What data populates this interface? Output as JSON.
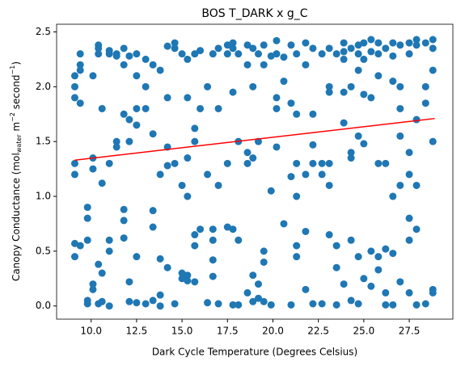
{
  "chart_data": {
    "type": "scatter",
    "title": "BOS T_DARK x g_C",
    "xlabel": "Dark Cycle Temperature (Degrees Celsius)",
    "ylabel": [
      "Canopy Conductance (mol",
      "water",
      " m",
      "−2",
      " second",
      "−1",
      ")"
    ],
    "color": "#1f77b4",
    "xlim": [
      8.1,
      29.9
    ],
    "ylim": [
      -0.12,
      2.57
    ],
    "xticks": [
      {
        "value": 10,
        "label": "10.0"
      },
      12.5,
      {
        "value": 15,
        "label": "15.0"
      },
      17.5,
      {
        "value": 20,
        "label": "20.0"
      },
      22.5,
      {
        "value": 25,
        "label": "25.0"
      },
      27.5
    ],
    "yticks": [
      {
        "value": 0,
        "label": "0.0"
      },
      0.5,
      {
        "value": 1,
        "label": "1.0"
      },
      1.5,
      {
        "value": 2,
        "label": "2.0"
      },
      2.5
    ],
    "fit_line": {
      "color": "#ff0000",
      "x": [
        9.1,
        28.9
      ],
      "values": [
        1.33,
        1.71
      ]
    },
    "x": [
      9.1,
      9.1,
      9.1,
      9.1,
      9.1,
      9.1,
      9.1,
      9.4,
      9.4,
      9.4,
      9.4,
      9.4,
      9.8,
      9.8,
      9.8,
      9.8,
      9.8,
      10.1,
      10.1,
      10.1,
      10.1,
      10.1,
      10.4,
      10.4,
      10.4,
      10.4,
      10.4,
      10.6,
      10.6,
      10.6,
      10.6,
      11.0,
      11.0,
      11.0,
      11.0,
      11.0,
      11.0,
      11.4,
      11.4,
      11.4,
      11.4,
      11.8,
      11.8,
      11.8,
      11.8,
      11.8,
      11.8,
      12.1,
      12.1,
      12.1,
      12.1,
      12.1,
      12.5,
      12.5,
      12.5,
      12.5,
      12.5,
      12.5,
      13.0,
      13.0,
      13.0,
      13.0,
      13.4,
      13.4,
      13.4,
      13.4,
      13.4,
      13.8,
      13.8,
      13.8,
      13.8,
      13.8,
      14.2,
      14.2,
      14.2,
      14.2,
      14.2,
      14.6,
      14.6,
      14.6,
      14.6,
      15.0,
      15.0,
      15.0,
      15.0,
      15.3,
      15.3,
      15.3,
      15.3,
      15.3,
      15.3,
      15.7,
      15.7,
      15.7,
      15.7,
      15.7,
      15.7,
      16.0,
      16.0,
      16.0,
      16.4,
      16.4,
      16.4,
      16.7,
      16.7,
      16.7,
      16.7,
      16.7,
      17.0,
      17.0,
      17.0,
      17.0,
      17.5,
      17.5,
      17.5,
      17.5,
      17.8,
      17.8,
      17.8,
      17.8,
      17.8,
      18.1,
      18.1,
      18.1,
      18.1,
      18.6,
      18.6,
      18.6,
      18.6,
      18.6,
      18.9,
      18.9,
      18.9,
      18.9,
      18.9,
      19.2,
      19.2,
      19.2,
      19.2,
      19.5,
      19.5,
      19.5,
      19.5,
      19.5,
      19.9,
      19.9,
      19.9,
      20.2,
      20.2,
      20.2,
      20.2,
      20.2,
      20.6,
      20.6,
      20.6,
      21.0,
      21.0,
      21.0,
      21.0,
      21.3,
      21.3,
      21.3,
      21.3,
      21.3,
      21.3,
      21.8,
      21.8,
      21.8,
      21.8,
      21.8,
      22.2,
      22.2,
      22.2,
      22.2,
      22.2,
      22.7,
      22.7,
      22.7,
      22.7,
      23.1,
      23.1,
      23.1,
      23.1,
      23.1,
      23.1,
      23.5,
      23.5,
      23.5,
      23.5,
      23.9,
      23.9,
      23.9,
      23.9,
      23.9,
      23.9,
      24.3,
      24.3,
      24.3,
      24.3,
      24.3,
      24.3,
      24.7,
      24.7,
      24.7,
      24.7,
      24.7,
      24.7,
      25.0,
      25.0,
      25.0,
      25.0,
      25.0,
      25.4,
      25.4,
      25.4,
      25.4,
      25.4,
      25.8,
      25.8,
      25.8,
      25.8,
      25.8,
      25.8,
      26.2,
      26.2,
      26.2,
      26.2,
      26.2,
      26.6,
      26.6,
      26.6,
      26.6,
      26.6,
      26.6,
      27.0,
      27.0,
      27.0,
      27.0,
      27.0,
      27.0,
      27.5,
      27.5,
      27.5,
      27.5,
      27.5,
      27.5,
      27.5,
      27.9,
      27.9,
      27.9,
      27.9,
      27.9,
      27.9,
      28.4,
      28.4,
      28.4,
      28.4,
      28.8,
      28.8,
      28.8,
      28.8,
      28.8,
      28.8
    ],
    "values": [
      2.1,
      2.0,
      1.9,
      1.3,
      1.2,
      0.57,
      0.45,
      2.3,
      2.2,
      2.15,
      1.85,
      0.55,
      0.9,
      0.8,
      0.6,
      0.05,
      0.02,
      2.1,
      1.35,
      1.25,
      0.2,
      0.15,
      2.38,
      2.35,
      2.3,
      0.38,
      0.02,
      1.8,
      1.12,
      0.3,
      0.04,
      2.33,
      2.3,
      1.3,
      0.6,
      0.5,
      0.0,
      2.3,
      2.28,
      1.5,
      1.45,
      2.35,
      2.2,
      1.75,
      0.88,
      0.78,
      0.62,
      2.28,
      1.7,
      1.5,
      0.22,
      0.04,
      2.3,
      2.1,
      1.8,
      1.65,
      0.45,
      0.03,
      2.25,
      2.0,
      1.8,
      0.02,
      2.2,
      1.57,
      0.87,
      0.72,
      0.05,
      2.15,
      1.2,
      0.43,
      0.1,
      0.0,
      2.37,
      1.9,
      1.45,
      1.28,
      0.35,
      2.4,
      2.35,
      1.3,
      0.02,
      2.3,
      1.1,
      0.3,
      0.25,
      2.25,
      1.9,
      1.35,
      1.0,
      0.28,
      0.23,
      2.3,
      1.62,
      1.5,
      0.65,
      0.55,
      0.22,
      2.33,
      1.8,
      0.7,
      2.0,
      1.2,
      0.03,
      2.3,
      0.7,
      0.6,
      0.42,
      0.27,
      2.35,
      1.8,
      1.1,
      0.02,
      2.38,
      2.3,
      1.3,
      0.72,
      2.4,
      2.35,
      1.95,
      0.7,
      0.01,
      2.3,
      1.5,
      0.6,
      0.01,
      2.38,
      2.2,
      1.3,
      1.4,
      0.12,
      2.35,
      2.0,
      1.35,
      0.28,
      0.04,
      2.3,
      1.5,
      0.2,
      0.07,
      2.38,
      2.2,
      0.5,
      0.4,
      0.04,
      2.28,
      1.05,
      0.01,
      2.42,
      2.3,
      1.9,
      1.8,
      1.45,
      2.27,
      2.05,
      0.75,
      2.38,
      1.85,
      1.18,
      0.01,
      2.3,
      1.75,
      1.3,
      1.0,
      0.55,
      0.45,
      2.4,
      2.2,
      1.2,
      0.68,
      0.15,
      2.35,
      1.75,
      1.47,
      1.3,
      0.02,
      2.3,
      1.3,
      1.2,
      0.02,
      2.35,
      2.0,
      1.95,
      1.3,
      1.1,
      0.65,
      2.3,
      0.55,
      0.35,
      0.01,
      2.4,
      2.32,
      2.25,
      1.95,
      1.67,
      0.2,
      2.35,
      2.0,
      1.4,
      1.35,
      0.6,
      0.05,
      2.38,
      2.3,
      2.15,
      1.55,
      0.45,
      0.02,
      2.4,
      2.25,
      1.93,
      1.48,
      0.25,
      2.43,
      2.32,
      1.9,
      0.5,
      0.18,
      2.4,
      2.3,
      2.1,
      1.3,
      0.45,
      0.33,
      2.35,
      1.3,
      0.52,
      0.12,
      0.01,
      2.4,
      2.28,
      2.05,
      1.0,
      0.48,
      0.01,
      2.38,
      2.0,
      1.8,
      1.55,
      1.1,
      0.22,
      2.4,
      2.3,
      1.4,
      1.2,
      0.8,
      0.6,
      0.12,
      2.43,
      2.38,
      1.7,
      1.1,
      0.7,
      0.01,
      2.4,
      2.0,
      1.85,
      0.02,
      2.43,
      2.35,
      2.15,
      1.5,
      0.15,
      0.12
    ]
  }
}
